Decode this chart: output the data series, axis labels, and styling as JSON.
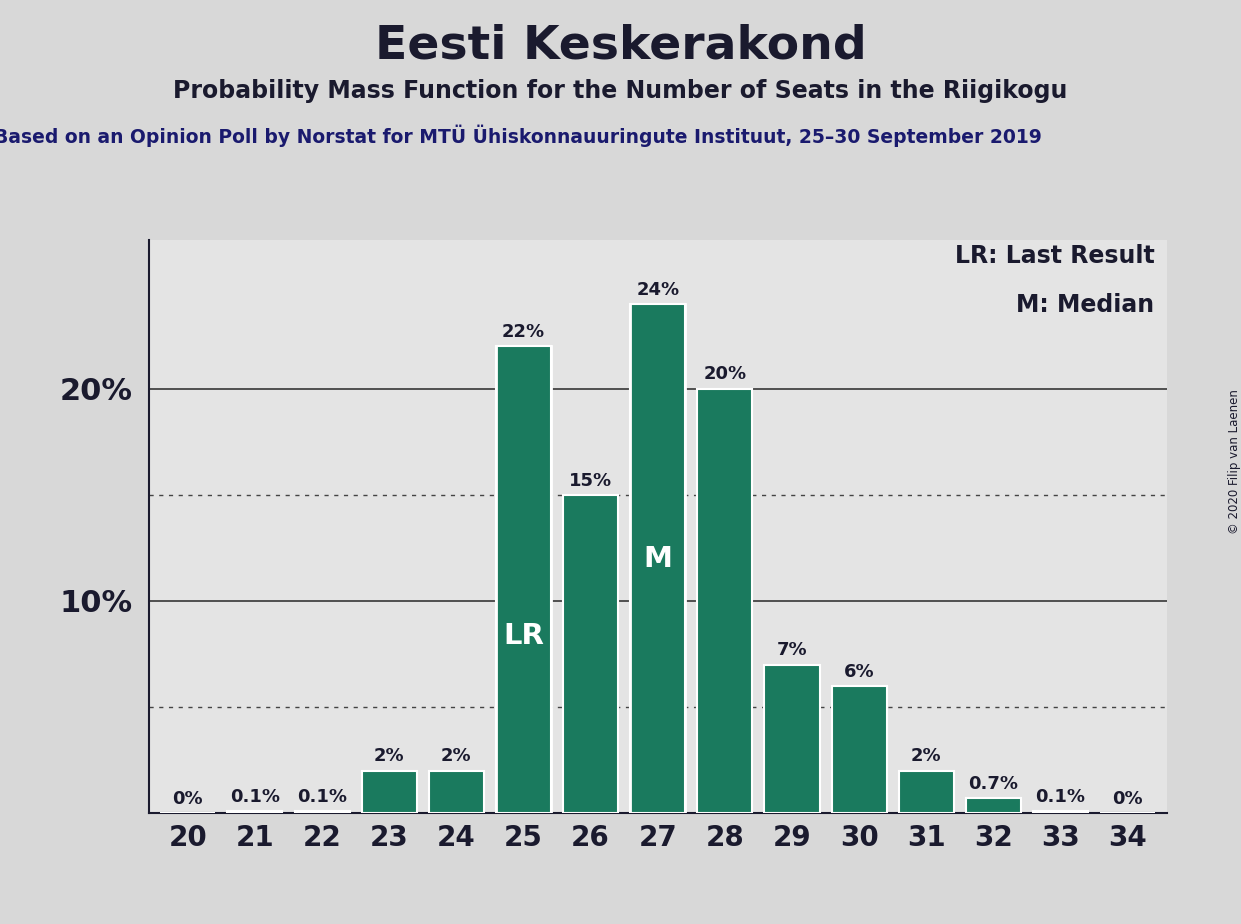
{
  "title": "Eesti Keskerakond",
  "subtitle": "Probability Mass Function for the Number of Seats in the Riigikogu",
  "source_line": "Based on an Opinion Poll by Norstat for MTÜ Ühiskonnauuringute Instituut, 25–30 September 2019",
  "copyright": "© 2020 Filip van Laenen",
  "seats": [
    20,
    21,
    22,
    23,
    24,
    25,
    26,
    27,
    28,
    29,
    30,
    31,
    32,
    33,
    34
  ],
  "probabilities": [
    0.0,
    0.1,
    0.1,
    2.0,
    2.0,
    22.0,
    15.0,
    24.0,
    20.0,
    7.0,
    6.0,
    2.0,
    0.7,
    0.1,
    0.0
  ],
  "bar_color": "#1a7a5e",
  "bar_edge_color": "#ffffff",
  "last_result_seat": 25,
  "median_seat": 27,
  "lr_label": "LR",
  "m_label": "M",
  "legend_lr": "LR: Last Result",
  "legend_m": "M: Median",
  "background_color": "#d8d8d8",
  "plot_bg_color": "#e4e4e4",
  "title_color": "#1a1a2e",
  "label_color": "#1a1a2e",
  "source_color": "#1a1a6e",
  "ylim": [
    0,
    27
  ],
  "grid_color": "#444444",
  "dotted_grid_values": [
    5,
    15
  ],
  "solid_grid_values": [
    10,
    20
  ]
}
